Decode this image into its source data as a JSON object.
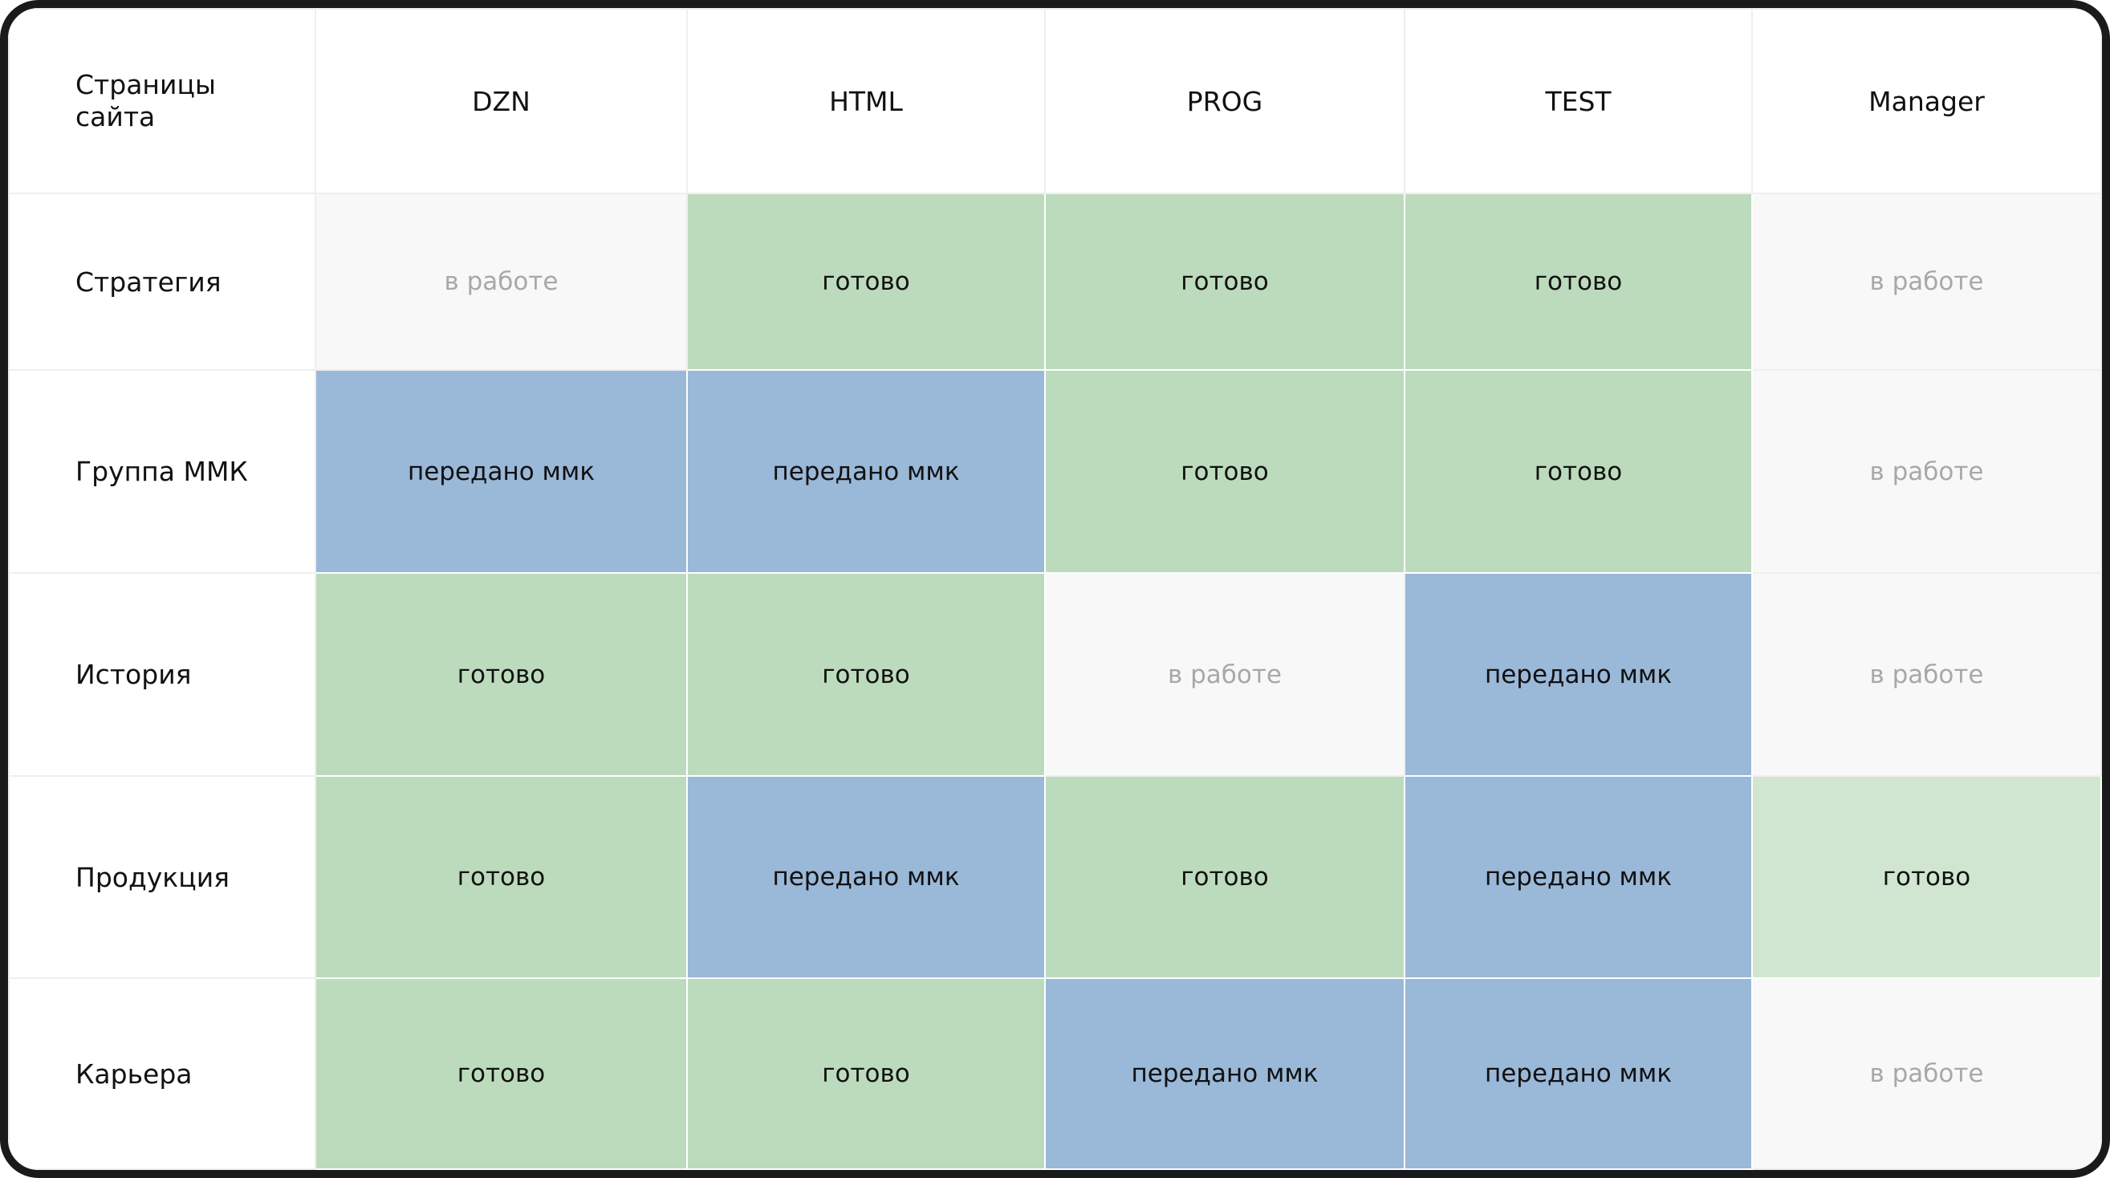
{
  "table": {
    "columns": [
      "Страницы сайта",
      "DZN",
      "HTML",
      "PROG",
      "TEST",
      "Manager"
    ],
    "rows": [
      [
        "Стратегия",
        "в работе",
        "готово",
        "готово",
        "готово",
        "в работе"
      ],
      [
        "Группа ММК",
        "передано ммк",
        "передано ммк",
        "готово",
        "готово",
        "в работе"
      ],
      [
        "История",
        "готово",
        "готово",
        "в работе",
        "передано ммк",
        "в работе"
      ],
      [
        "Продукция",
        "готово",
        "передано ммк",
        "готово",
        "передано ммк",
        "готово"
      ],
      [
        "Карьера",
        "готово",
        "готово",
        "передано ммк",
        "передано ммк",
        "в работе"
      ]
    ]
  }
}
